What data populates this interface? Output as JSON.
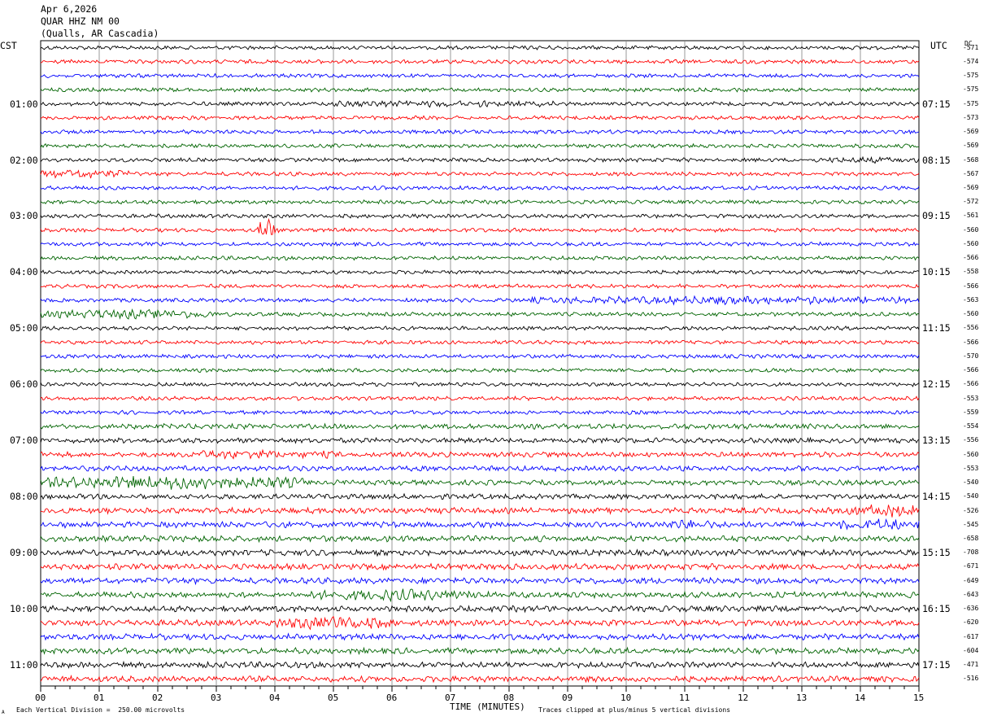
{
  "header": {
    "date": "Apr 6,2026",
    "station": "QUAR HHZ NM 00",
    "location": "(Qualls, AR Cascadia)"
  },
  "left_timezone": "CST",
  "right_timezone": "UTC",
  "dc_label": "DC",
  "footer": {
    "scale_note": "Each Vertical Division =  250.00 microvolts",
    "clip_note": "Traces clipped at plus/minus 5 vertical divisions",
    "corner_mark": "A"
  },
  "chart_data": {
    "type": "line",
    "title": "",
    "xlabel": "TIME (MINUTES)",
    "x_ticks": [
      "00",
      "01",
      "02",
      "03",
      "04",
      "05",
      "06",
      "07",
      "08",
      "09",
      "10",
      "11",
      "12",
      "13",
      "14",
      "15"
    ],
    "xlim": [
      0,
      15
    ],
    "trace_colors": [
      "#000000",
      "#ff0000",
      "#0000ff",
      "#006400"
    ],
    "left_hour_labels": [
      "01:00",
      "02:00",
      "03:00",
      "04:00",
      "05:00",
      "06:00",
      "07:00",
      "08:00",
      "09:00",
      "10:00",
      "11:00"
    ],
    "right_hour_labels": [
      "07:15",
      "08:15",
      "09:15",
      "10:15",
      "11:15",
      "12:15",
      "13:15",
      "14:15",
      "15:15",
      "16:15",
      "17:15"
    ],
    "dc_offsets": [
      "-571",
      "-574",
      "-575",
      "-575",
      "-575",
      "-573",
      "-569",
      "-569",
      "-568",
      "-567",
      "-569",
      "-572",
      "-561",
      "-560",
      "-560",
      "-566",
      "-558",
      "-566",
      "-563",
      "-560",
      "-556",
      "-566",
      "-570",
      "-566",
      "-566",
      "-553",
      "-559",
      "-554",
      "-556",
      "-560",
      "-553",
      "-540",
      "-540",
      "-526",
      "-545",
      "-658",
      "-708",
      "-671",
      "-649",
      "-643",
      "-636",
      "-620",
      "-617",
      "-604",
      "-471",
      "-516"
    ],
    "events": [
      {
        "row": 4,
        "start_min": 5.0,
        "end_min": 8.8,
        "level": 1.8
      },
      {
        "row": 8,
        "start_min": 13.2,
        "end_min": 15.0,
        "level": 1.7
      },
      {
        "row": 9,
        "start_min": 0.0,
        "end_min": 1.5,
        "level": 2.5
      },
      {
        "row": 13,
        "start_min": 3.7,
        "end_min": 4.1,
        "level": 6.0
      },
      {
        "row": 18,
        "start_min": 8.3,
        "end_min": 15.0,
        "level": 2.2
      },
      {
        "row": 19,
        "start_min": 0.0,
        "end_min": 3.0,
        "level": 2.5
      },
      {
        "row": 29,
        "start_min": 2.5,
        "end_min": 5.0,
        "level": 1.8
      },
      {
        "row": 31,
        "start_min": 0.0,
        "end_min": 4.5,
        "level": 2.8
      },
      {
        "row": 33,
        "start_min": 13.8,
        "end_min": 15.0,
        "level": 2.3
      },
      {
        "row": 34,
        "start_min": 10.5,
        "end_min": 11.5,
        "level": 1.6
      },
      {
        "row": 34,
        "start_min": 13.5,
        "end_min": 15.0,
        "level": 2.0
      },
      {
        "row": 39,
        "start_min": 4.5,
        "end_min": 7.5,
        "level": 2.0
      },
      {
        "row": 41,
        "start_min": 4.0,
        "end_min": 6.0,
        "level": 2.4
      }
    ]
  }
}
